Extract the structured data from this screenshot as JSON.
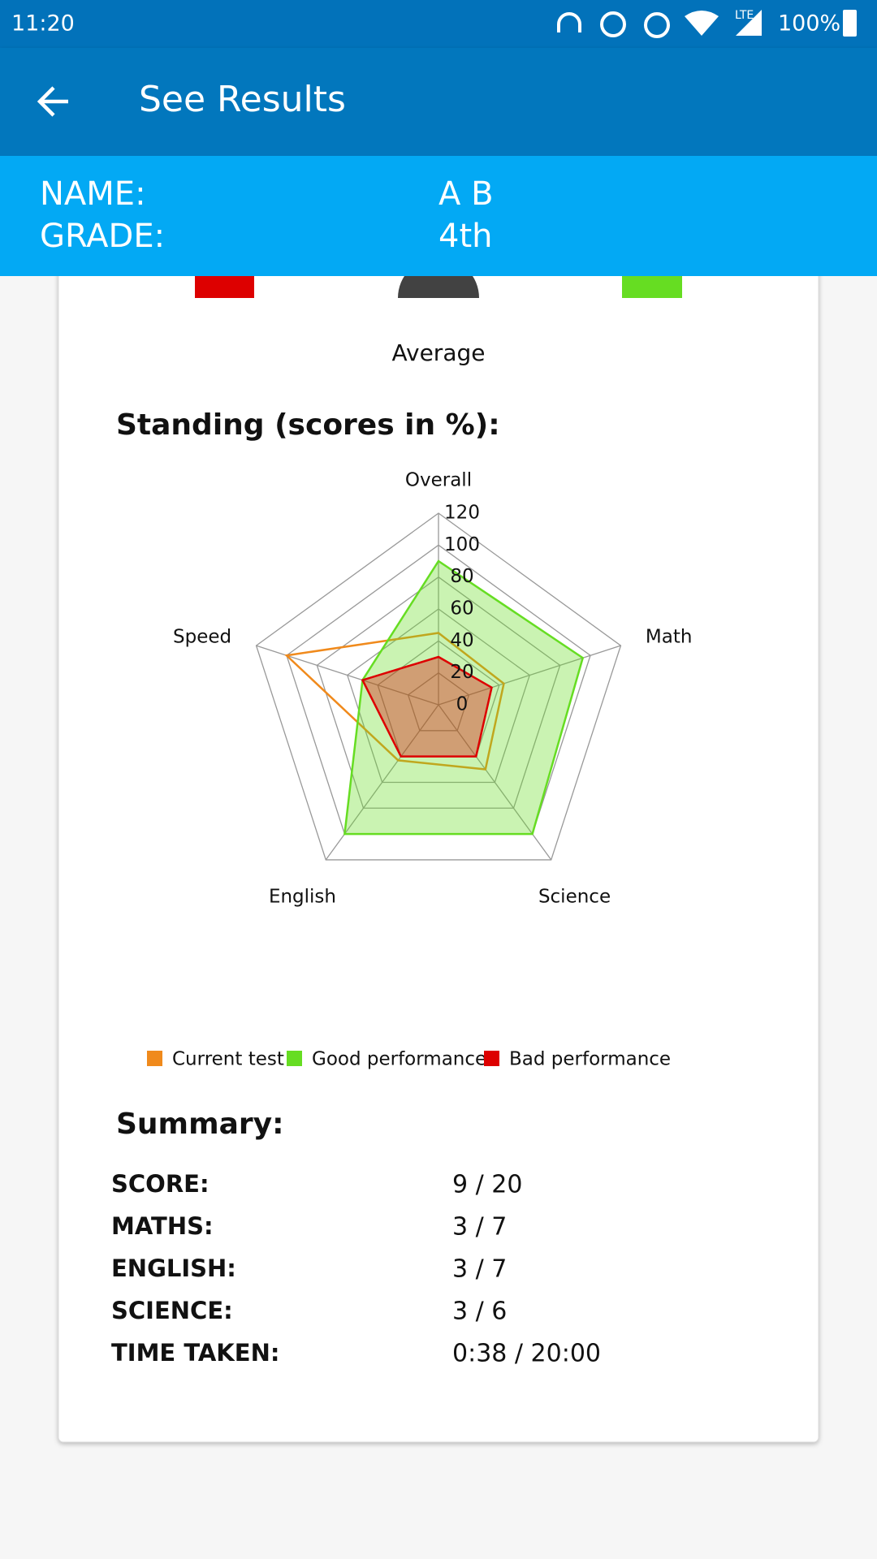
{
  "status_bar": {
    "time": "11:20",
    "network": "LTE",
    "battery": "100%"
  },
  "app_bar": {
    "title": "See Results"
  },
  "student": {
    "rows": [
      [
        "NAME:",
        "A B"
      ],
      [
        "GRADE:",
        "4th"
      ]
    ]
  },
  "gauge": {
    "label": "Average"
  },
  "chart_data": {
    "type": "radar",
    "title": "Standing (scores in %):",
    "categories": [
      "Overall",
      "Math",
      "Science",
      "English",
      "Speed"
    ],
    "rlim": [
      0,
      120
    ],
    "rticks": [
      0,
      20,
      40,
      60,
      80,
      100,
      120
    ],
    "legend": "bottom",
    "series": [
      {
        "name": "Current test",
        "color": "#f08a1c",
        "fill": false,
        "values": [
          45,
          43,
          50,
          43,
          100
        ]
      },
      {
        "name": "Good performance",
        "color": "#66dd22",
        "fill": true,
        "values": [
          90,
          95,
          100,
          100,
          50
        ]
      },
      {
        "name": "Bad performance",
        "color": "#dd0000",
        "fill": true,
        "values": [
          30,
          35,
          40,
          40,
          50
        ]
      }
    ]
  },
  "summary": {
    "title": "Summary:",
    "rows": [
      [
        "SCORE:",
        "9 / 20"
      ],
      [
        "MATHS:",
        "3 / 7"
      ],
      [
        "ENGLISH:",
        "3 / 7"
      ],
      [
        "SCIENCE:",
        "3 / 6"
      ],
      [
        "TIME TAKEN:",
        "0:38 / 20:00"
      ]
    ]
  }
}
